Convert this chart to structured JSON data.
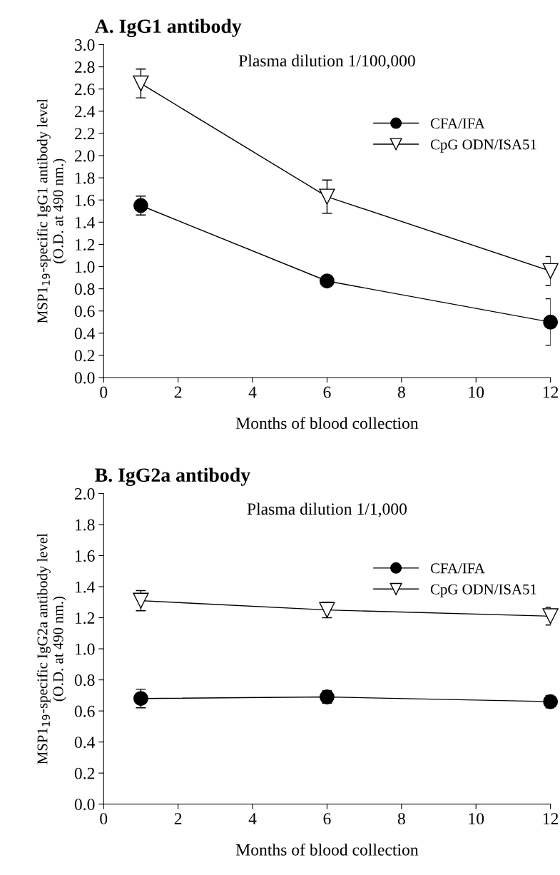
{
  "chart_data": [
    {
      "type": "line",
      "title": "A. IgG1 antibody",
      "xlabel": "Months of blood collection",
      "ylabel": "MSP1$_{19}$-specific IgG1 antibody level\n(O.D. at 490 nm.)",
      "annotations": [
        "Plasma dilution 1/100,000"
      ],
      "x": [
        1,
        6,
        12
      ],
      "series": [
        {
          "name": "CFA/IFA",
          "color": "#000000",
          "marker": "circle",
          "values": [
            1.55,
            0.87,
            0.5
          ],
          "errors": [
            0.085,
            null,
            0.21
          ]
        },
        {
          "name": "CpG ODN/ISA51",
          "color": "#000000",
          "marker": "triangle",
          "values": [
            2.65,
            1.63,
            0.96
          ],
          "errors": [
            0.13,
            0.15,
            0.13
          ]
        }
      ],
      "xlim": [
        0,
        12
      ],
      "xticks": [
        0,
        2,
        4,
        6,
        8,
        10,
        12
      ],
      "ylim": [
        0,
        3.0
      ],
      "yticks": [
        {
          "value": 0,
          "label": "0.0"
        },
        {
          "value": 0.2,
          "label": "0.2"
        },
        {
          "value": 0.4,
          "label": "0.4"
        },
        {
          "value": 0.6,
          "label": "0.6"
        },
        {
          "value": 0.8,
          "label": "0.8"
        },
        {
          "value": 1.0,
          "label": "1.0"
        },
        {
          "value": 1.2,
          "label": "1.2"
        },
        {
          "value": 1.4,
          "label": "1.4"
        },
        {
          "value": 1.6,
          "label": "1.6"
        },
        {
          "value": 1.8,
          "label": "1.8"
        },
        {
          "value": 2.0,
          "label": "2.0"
        },
        {
          "value": 2.2,
          "label": "2.2"
        },
        {
          "value": 2.4,
          "label": "2.4"
        },
        {
          "value": 2.6,
          "label": "2.6"
        },
        {
          "value": 2.8,
          "label": "2.8"
        },
        {
          "value": 3.0,
          "label": "3.0"
        }
      ],
      "grid": false,
      "legend": "upper right",
      "line_style": "solid"
    },
    {
      "type": "line",
      "title": "B. IgG2a antibody",
      "xlabel": "Months of blood collection",
      "ylabel": "MSP1$_{19}$-specific IgG2a antibody level\n(O.D. at 490 nm.)",
      "annotations": [
        "Plasma dilution 1/1,000"
      ],
      "x": [
        1,
        6,
        12
      ],
      "series": [
        {
          "name": "CFA/IFA",
          "color": "#000000",
          "marker": "circle",
          "values": [
            0.68,
            0.69,
            0.66
          ],
          "errors": [
            0.06,
            0.04,
            0.04
          ]
        },
        {
          "name": "CpG ODN/ISA51",
          "color": "#000000",
          "marker": "triangle",
          "values": [
            1.31,
            1.25,
            1.21
          ],
          "errors": [
            0.065,
            0.05,
            0.057
          ]
        }
      ],
      "xlim": [
        0,
        12
      ],
      "xticks": [
        0,
        2,
        4,
        6,
        8,
        10,
        12
      ],
      "ylim": [
        0,
        2.0
      ],
      "yticks": [
        {
          "value": 0,
          "label": "0.0"
        },
        {
          "value": 0.2,
          "label": "0.2"
        },
        {
          "value": 0.4,
          "label": "0.4"
        },
        {
          "value": 0.6,
          "label": "0.6"
        },
        {
          "value": 0.8,
          "label": "0.8"
        },
        {
          "value": 1.0,
          "label": "1.0"
        },
        {
          "value": 1.2,
          "label": "1.2"
        },
        {
          "value": 1.4,
          "label": "1.4"
        },
        {
          "value": 1.6,
          "label": "1.6"
        },
        {
          "value": 1.8,
          "label": "1.8"
        },
        {
          "value": 2.0,
          "label": "2.0"
        }
      ],
      "grid": false,
      "legend": "upper right",
      "line_style": "solid"
    }
  ]
}
